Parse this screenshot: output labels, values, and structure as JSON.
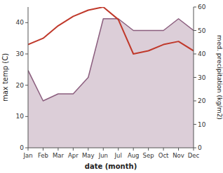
{
  "chart_data": {
    "type": "line",
    "x_label": "date (month)",
    "y_label": "max temp (C)",
    "y2_label": "med. precipitation (kg/m2)",
    "categories": [
      "Jan",
      "Feb",
      "Mar",
      "Apr",
      "May",
      "Jun",
      "Jul",
      "Aug",
      "Sep",
      "Oct",
      "Nov",
      "Dec"
    ],
    "series": [
      {
        "type": "area",
        "axis": "y2",
        "color": "#8b5e7e",
        "values": [
          33,
          20,
          23,
          23,
          30,
          55,
          55,
          50,
          50,
          50,
          55,
          50
        ]
      },
      {
        "type": "line",
        "color": "#c0392b",
        "values": [
          33,
          35,
          39,
          42,
          44,
          45,
          41,
          30,
          31,
          33,
          34,
          31
        ]
      }
    ],
    "ylim": [
      0,
      45
    ],
    "yticks": [
      0,
      10,
      20,
      30,
      40
    ],
    "y2lim": [
      0,
      60
    ],
    "y2ticks": [
      0,
      10,
      20,
      30,
      40,
      50,
      60
    ]
  }
}
